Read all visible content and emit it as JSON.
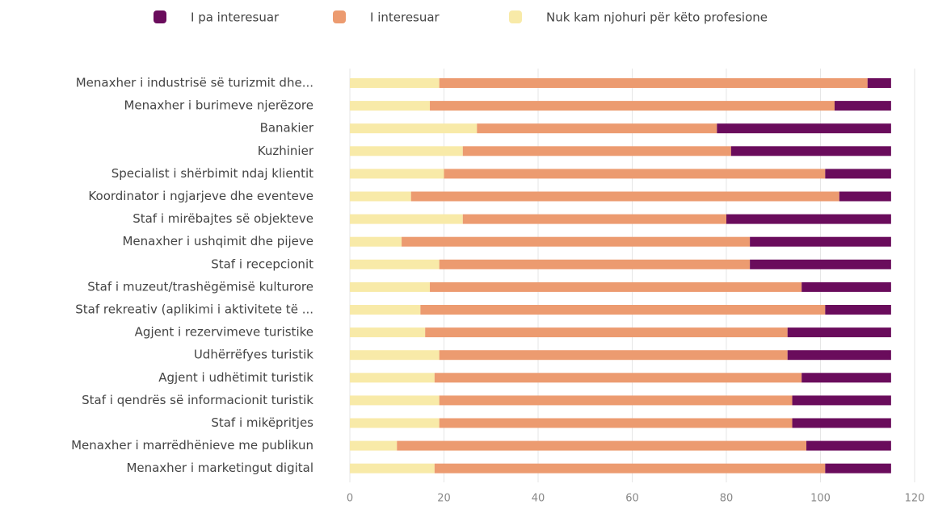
{
  "chart_data": {
    "type": "stacked-barh",
    "categories": [
      "Menaxher i industrisë së turizmit dhe...",
      "Menaxher i burimeve njerëzore",
      "Banakier",
      "Kuzhinier",
      "Specialist i shërbimit ndaj klientit",
      "Koordinator i ngjarjeve dhe eventeve",
      "Staf i mirëbajtes së objekteve",
      "Menaxher i ushqimit dhe pijeve",
      "Staf i recepcionit",
      "Staf i muzeut/trashëgëmisë kulturore",
      "Staf rekreativ (aplikimi i aktivitete të ...",
      "Agjent i rezervimeve turistike",
      "Udhërrëfyes turistik",
      "Agjent i udhëtimit turistik",
      "Staf i qendrës së informacionit turistik",
      "Staf i mikëpritjes",
      "Menaxher i marrëdhënieve me publikun",
      "Menaxher i marketingut digital"
    ],
    "series": [
      {
        "name": "I pa interesuar",
        "color": "#6a0c5c",
        "values": [
          5,
          12,
          37,
          34,
          14,
          11,
          35,
          30,
          30,
          19,
          14,
          22,
          22,
          19,
          21,
          21,
          18,
          14
        ]
      },
      {
        "name": "I interesuar",
        "color": "#ec9b70",
        "values": [
          91,
          86,
          51,
          57,
          81,
          91,
          56,
          74,
          66,
          79,
          86,
          77,
          74,
          78,
          75,
          75,
          87,
          83
        ]
      },
      {
        "name": "Nuk kam njohuri për këto profesione",
        "color": "#f8eaa8",
        "values": [
          19,
          17,
          27,
          24,
          20,
          13,
          24,
          11,
          19,
          17,
          15,
          16,
          19,
          18,
          19,
          19,
          10,
          18
        ]
      }
    ],
    "xlim": [
      0,
      120
    ],
    "xticks": [
      0,
      20,
      40,
      60,
      80,
      100,
      120
    ],
    "grid": true
  }
}
